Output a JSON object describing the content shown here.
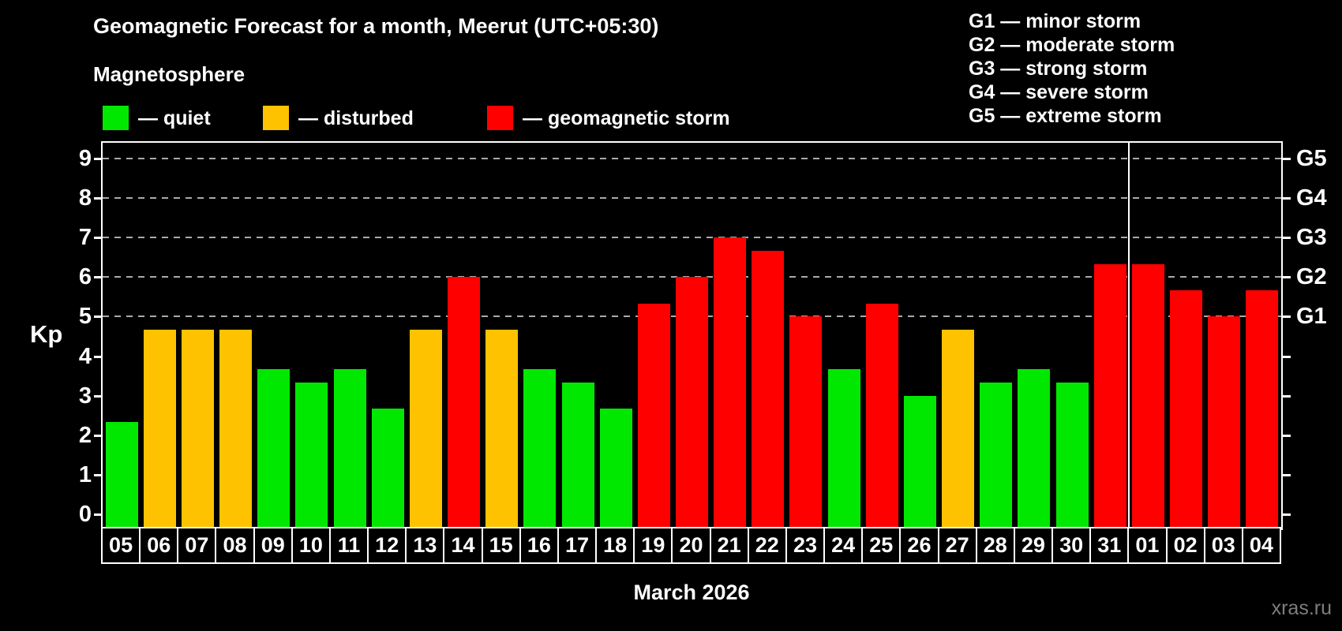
{
  "title": "Geomagnetic Forecast for a month, Meerut (UTC+05:30)",
  "subtitle": "Magnetosphere",
  "legend": {
    "items": [
      {
        "key": "quiet",
        "label": "— quiet",
        "color": "#00e800"
      },
      {
        "key": "disturbed",
        "label": "— disturbed",
        "color": "#ffc200"
      },
      {
        "key": "storm",
        "label": "— geomagnetic storm",
        "color": "#ff0000"
      }
    ]
  },
  "storm_scale": [
    "G1 — minor storm",
    "G2 — moderate storm",
    "G3 — strong storm",
    "G4 — severe storm",
    "G5 — extreme storm"
  ],
  "watermark": "xras.ru",
  "chart_data": {
    "type": "bar",
    "title": "Geomagnetic Forecast for a month, Meerut (UTC+05:30)",
    "xlabel": "March 2026",
    "ylabel": "Kp",
    "ylim": [
      0,
      9.4
    ],
    "yticks": [
      0,
      1,
      2,
      3,
      4,
      5,
      6,
      7,
      8,
      9
    ],
    "gridlines_at_kp": [
      5,
      6,
      7,
      8,
      9
    ],
    "grid": "dashed horizontal lines at Kp 5..9 only",
    "legend_position": "top-left",
    "right_axis_labels": [
      {
        "kp": 5,
        "label": "G1"
      },
      {
        "kp": 6,
        "label": "G2"
      },
      {
        "kp": 7,
        "label": "G3"
      },
      {
        "kp": 8,
        "label": "G4"
      },
      {
        "kp": 9,
        "label": "G5"
      }
    ],
    "categories": [
      "05",
      "06",
      "07",
      "08",
      "09",
      "10",
      "11",
      "12",
      "13",
      "14",
      "15",
      "16",
      "17",
      "18",
      "19",
      "20",
      "21",
      "22",
      "23",
      "24",
      "25",
      "26",
      "27",
      "28",
      "29",
      "30",
      "31",
      "01",
      "02",
      "03",
      "04"
    ],
    "values": [
      2.33,
      4.67,
      4.67,
      4.67,
      3.67,
      3.33,
      3.67,
      2.67,
      4.67,
      6.0,
      4.67,
      3.67,
      3.33,
      2.67,
      5.33,
      6.0,
      7.0,
      6.67,
      5.0,
      3.67,
      5.33,
      3.0,
      4.67,
      3.33,
      3.67,
      3.33,
      6.33,
      6.33,
      5.67,
      5.0,
      5.67
    ],
    "statuses": [
      "quiet",
      "disturbed",
      "disturbed",
      "disturbed",
      "quiet",
      "quiet",
      "quiet",
      "quiet",
      "disturbed",
      "storm",
      "disturbed",
      "quiet",
      "quiet",
      "quiet",
      "storm",
      "storm",
      "storm",
      "storm",
      "storm",
      "quiet",
      "storm",
      "quiet",
      "disturbed",
      "quiet",
      "quiet",
      "quiet",
      "storm",
      "storm",
      "storm",
      "storm",
      "storm"
    ],
    "status_colors": {
      "quiet": "#00e800",
      "disturbed": "#ffc200",
      "storm": "#ff0000"
    },
    "month_divider_after_index": 26
  }
}
